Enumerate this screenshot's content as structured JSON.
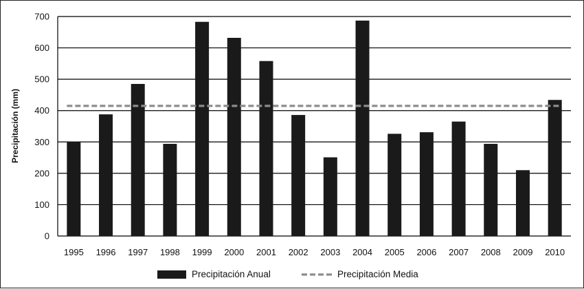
{
  "chart_data": {
    "type": "bar",
    "title": "",
    "xlabel": "",
    "ylabel": "Precipitación (mm)",
    "ylim": [
      0,
      700
    ],
    "yticks": [
      0,
      100,
      200,
      300,
      400,
      500,
      600,
      700
    ],
    "grid": true,
    "legend_position": "bottom",
    "categories": [
      "1995",
      "1996",
      "1997",
      "1998",
      "1999",
      "2000",
      "2001",
      "2002",
      "2003",
      "2004",
      "2005",
      "2006",
      "2007",
      "2008",
      "2009",
      "2010"
    ],
    "series": [
      {
        "name": "Precipitación Anual",
        "type": "bar",
        "color": "#1a1a1a",
        "values": [
          300,
          388,
          485,
          294,
          683,
          632,
          558,
          386,
          251,
          687,
          326,
          331,
          365,
          294,
          210,
          434
        ]
      },
      {
        "name": "Precipitación Media",
        "type": "line",
        "style": "dashed",
        "color": "#8c8c8c",
        "value": 415
      }
    ]
  }
}
